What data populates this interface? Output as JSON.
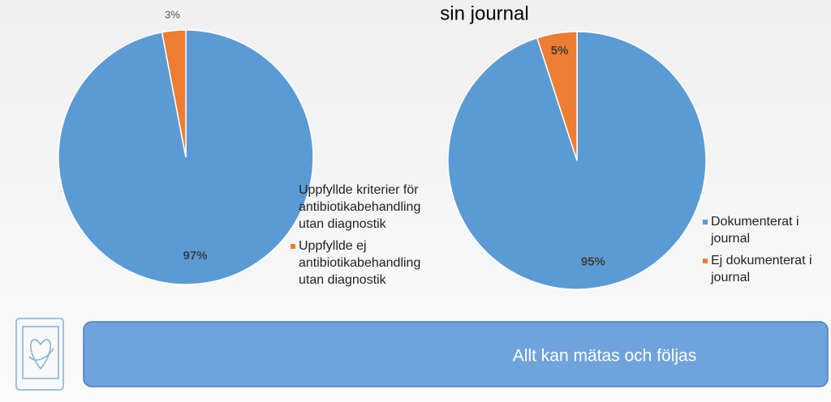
{
  "chart_data": [
    {
      "type": "pie",
      "categories": [
        "Uppfyllde kriterier för antibiotikabehandling utan diagnostik",
        "Uppfyllde ej antibiotikabehandling utan diagnostik"
      ],
      "values": [
        97,
        3
      ],
      "value_labels": [
        "97%",
        "3%"
      ],
      "colors": [
        "#5b9bd5",
        "#ed7d31"
      ]
    },
    {
      "type": "pie",
      "title": "sin journal",
      "categories": [
        "Dokumenterat i journal",
        "Ej dokumenterat i journal"
      ],
      "values": [
        95,
        5
      ],
      "value_labels": [
        "95%",
        "5%"
      ],
      "colors": [
        "#5b9bd5",
        "#ed7d31"
      ]
    }
  ],
  "banner": {
    "text": "Allt kan mätas och följas"
  }
}
